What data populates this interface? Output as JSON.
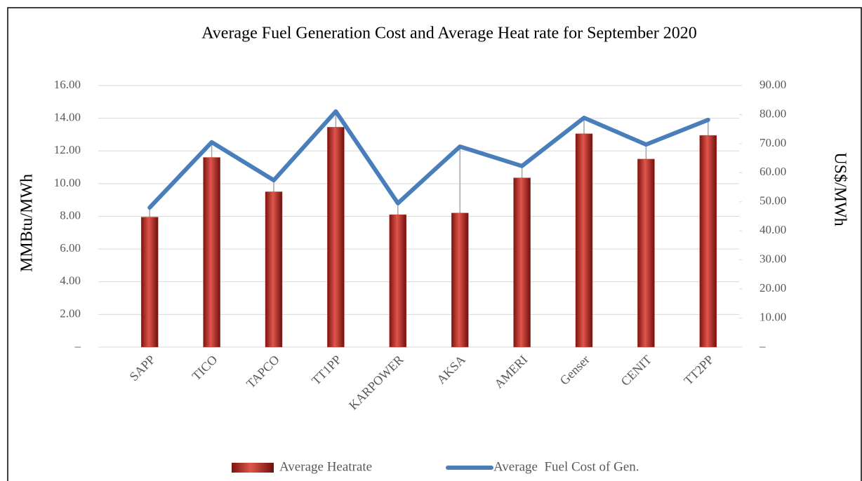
{
  "chart_data": {
    "type": "combo",
    "title": "Average Fuel Generation Cost and Average Heat rate for September 2020",
    "y_label": "MMBtu/MWh",
    "y2_label": "US$/MWh",
    "categories": [
      "SAPP",
      "TICO",
      "TAPCO",
      "TT1PP",
      "KARPOWER",
      "AKSA",
      "AMERI",
      "Genser",
      "CENIT",
      "TT2PP"
    ],
    "series": [
      {
        "name": "Average Heatrate",
        "type": "bar",
        "color": "#c0392b",
        "values": [
          7.95,
          11.6,
          9.5,
          13.45,
          8.1,
          8.2,
          10.35,
          13.05,
          11.5,
          12.95
        ]
      },
      {
        "name": "Average  Fuel Cost of Gen.",
        "type": "line",
        "axis": "y2",
        "color": "#4a7ebb",
        "values": [
          48.0,
          70.5,
          57.4,
          81.1,
          49.5,
          69.0,
          62.3,
          78.9,
          69.7,
          78.2
        ]
      }
    ],
    "ylim": [
      0,
      16
    ],
    "yticks": [
      {
        "value": 0,
        "label": "–"
      },
      {
        "value": 2,
        "label": "2.00"
      },
      {
        "value": 4,
        "label": "4.00"
      },
      {
        "value": 6,
        "label": "6.00"
      },
      {
        "value": 8,
        "label": "8.00"
      },
      {
        "value": 10,
        "label": "10.00"
      },
      {
        "value": 12,
        "label": "12.00"
      },
      {
        "value": 14,
        "label": "14.00"
      },
      {
        "value": 16,
        "label": "16.00"
      }
    ],
    "y2lim": [
      0,
      90
    ],
    "y2ticks": [
      {
        "value": 0,
        "label": "–"
      },
      {
        "value": 10,
        "label": "10.00"
      },
      {
        "value": 20,
        "label": "20.00"
      },
      {
        "value": 30,
        "label": "30.00"
      },
      {
        "value": 40,
        "label": "40.00"
      },
      {
        "value": 50,
        "label": "50.00"
      },
      {
        "value": 60,
        "label": "60.00"
      },
      {
        "value": 70,
        "label": "70.00"
      },
      {
        "value": 80,
        "label": "80.00"
      },
      {
        "value": 90,
        "label": "90.00"
      }
    ],
    "grid": true,
    "legend": "bottom"
  }
}
